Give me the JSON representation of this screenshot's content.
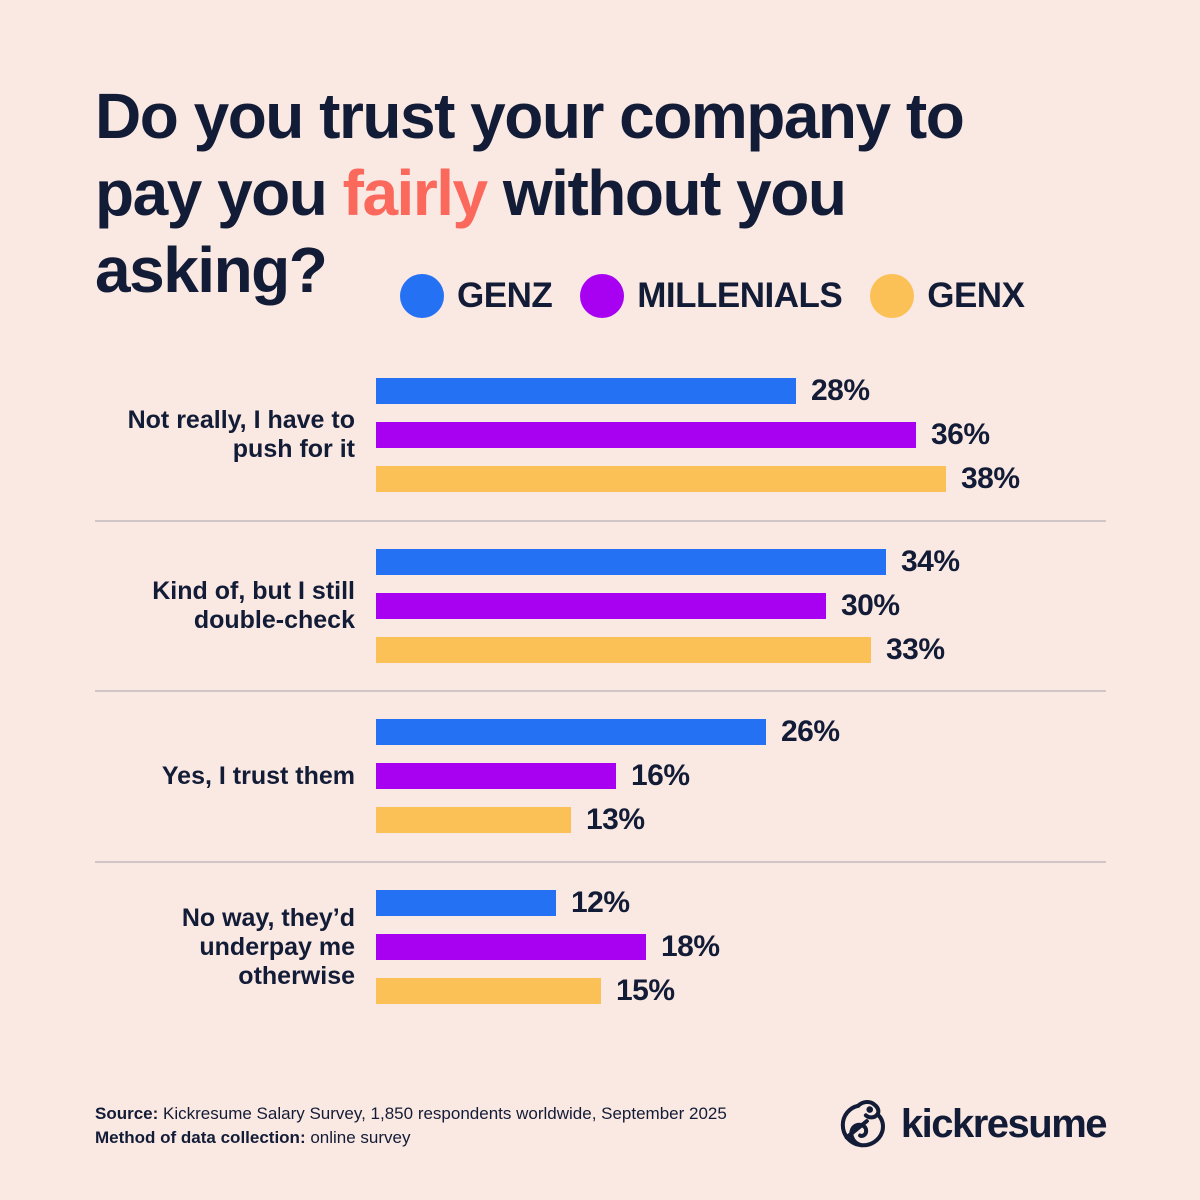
{
  "title": {
    "line1": "Do you trust your company to",
    "line2_pre": "pay you ",
    "highlight": "fairly",
    "line2_post": " without you",
    "line3": "asking?"
  },
  "legend": [
    {
      "label": "GENZ",
      "color": "#2471F3"
    },
    {
      "label": "MILLENIALS",
      "color": "#A800F0"
    },
    {
      "label": "GENX",
      "color": "#FBC156"
    }
  ],
  "chart_data": {
    "type": "bar",
    "orientation": "horizontal",
    "unit": "%",
    "title": "Do you trust your company to pay you fairly without you asking?",
    "categories": [
      "Not really, I have to push for it",
      "Kind of, but I still double-check",
      "Yes, I trust them",
      "No way, they’d underpay me otherwise"
    ],
    "series": [
      {
        "name": "GENZ",
        "color": "#2471F3",
        "values": [
          28,
          34,
          26,
          12
        ]
      },
      {
        "name": "MILLENIALS",
        "color": "#A800F0",
        "values": [
          36,
          30,
          16,
          18
        ]
      },
      {
        "name": "GENX",
        "color": "#FBC156",
        "values": [
          38,
          33,
          13,
          15
        ]
      }
    ],
    "xlim": [
      0,
      40
    ],
    "value_labels": true,
    "grid": false,
    "legend_position": "top-right"
  },
  "groups": [
    {
      "label_lines": [
        "Not really, I have to",
        "push for it"
      ],
      "bars": [
        {
          "series": "GENZ",
          "value": 28,
          "label": "28%",
          "color": "#2471F3"
        },
        {
          "series": "MILLENIALS",
          "value": 36,
          "label": "36%",
          "color": "#A800F0"
        },
        {
          "series": "GENX",
          "value": 38,
          "label": "38%",
          "color": "#FBC156"
        }
      ]
    },
    {
      "label_lines": [
        "Kind of, but I still",
        "double-check"
      ],
      "bars": [
        {
          "series": "GENZ",
          "value": 34,
          "label": "34%",
          "color": "#2471F3"
        },
        {
          "series": "MILLENIALS",
          "value": 30,
          "label": "30%",
          "color": "#A800F0"
        },
        {
          "series": "GENX",
          "value": 33,
          "label": "33%",
          "color": "#FBC156"
        }
      ]
    },
    {
      "label_lines": [
        "Yes, I trust them"
      ],
      "bars": [
        {
          "series": "GENZ",
          "value": 26,
          "label": "26%",
          "color": "#2471F3"
        },
        {
          "series": "MILLENIALS",
          "value": 16,
          "label": "16%",
          "color": "#A800F0"
        },
        {
          "series": "GENX",
          "value": 13,
          "label": "13%",
          "color": "#FBC156"
        }
      ]
    },
    {
      "label_lines": [
        "No way, they’d",
        "underpay me",
        "otherwise"
      ],
      "bars": [
        {
          "series": "GENZ",
          "value": 12,
          "label": "12%",
          "color": "#2471F3"
        },
        {
          "series": "MILLENIALS",
          "value": 18,
          "label": "18%",
          "color": "#A800F0"
        },
        {
          "series": "GENX",
          "value": 15,
          "label": "15%",
          "color": "#FBC156"
        }
      ]
    }
  ],
  "footer": {
    "source_label": "Source:",
    "source_text": " Kickresume Salary Survey, 1,850 respondents worldwide, September 2025",
    "method_label": "Method of data collection:",
    "method_text": " online survey"
  },
  "logo": {
    "text": "kickresume"
  },
  "colors": {
    "background": "#FAE8E3",
    "text_navy": "#131C36",
    "highlight_coral": "#FB685C",
    "divider": "#D2C5C7"
  }
}
